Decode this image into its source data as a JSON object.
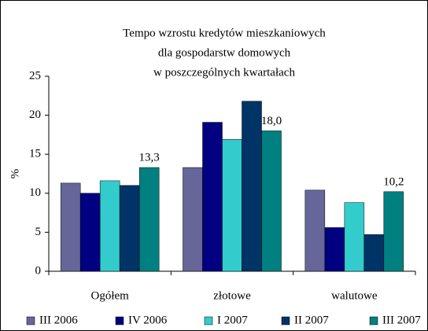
{
  "chart_data": {
    "type": "bar",
    "title": [
      "Tempo wzrostu kredytów mieszkaniowych",
      "dla gospodarstw domowych",
      "w poszczególnych kwartałach"
    ],
    "y_label": "%",
    "categories": [
      "Ogółem",
      "złotowe",
      "walutowe"
    ],
    "series": [
      {
        "name": "III 2006",
        "color": "#666699",
        "values": [
          11.3,
          13.3,
          10.4
        ]
      },
      {
        "name": "IV 2006",
        "color": "#000080",
        "values": [
          10.0,
          19.1,
          5.6
        ]
      },
      {
        "name": "I 2007",
        "color": "#33cccc",
        "values": [
          11.6,
          16.9,
          8.8
        ]
      },
      {
        "name": "II 2007",
        "color": "#003366",
        "values": [
          11.0,
          21.8,
          4.7
        ]
      },
      {
        "name": "III 2007",
        "color": "#008080",
        "values": [
          13.3,
          18.0,
          10.2
        ],
        "value_labels": [
          "13,3",
          "18,0",
          "10,2"
        ]
      }
    ],
    "ylim": [
      0,
      25
    ],
    "yticks": [
      0,
      5,
      10,
      15,
      20,
      25
    ],
    "grid": false,
    "legend": "bottom"
  }
}
